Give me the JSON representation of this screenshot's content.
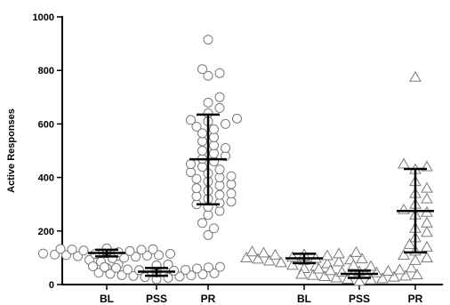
{
  "chart_data": {
    "type": "scatter",
    "ylabel": "Active Responses",
    "xlabel": "",
    "ylim": [
      0,
      1000
    ],
    "yticks": [
      0,
      200,
      400,
      600,
      800,
      1000
    ],
    "grid": false,
    "categories": [
      "BL",
      "PSS",
      "PR",
      "BL",
      "PSS",
      "PR"
    ],
    "groups": [
      {
        "category": "BL",
        "marker": "circle",
        "mean": 118,
        "error_low": 105,
        "error_high": 130,
        "points": [
          62,
          75,
          85,
          92,
          98,
          100,
          104,
          106,
          108,
          110,
          110,
          112,
          114,
          115,
          116,
          117,
          118,
          119,
          120,
          120,
          121,
          122,
          122,
          123,
          124,
          125,
          125,
          126,
          127,
          128,
          128,
          130,
          131,
          132,
          133,
          134,
          135
        ]
      },
      {
        "category": "PSS",
        "marker": "circle",
        "mean": 48,
        "error_low": 33,
        "error_high": 62,
        "points": [
          20,
          25,
          28,
          30,
          32,
          34,
          35,
          38,
          40,
          42,
          44,
          45,
          46,
          48,
          50,
          50,
          52,
          54,
          55,
          56,
          58,
          60,
          62,
          64,
          65,
          66,
          68,
          70,
          72,
          75
        ]
      },
      {
        "category": "PR",
        "marker": "circle",
        "mean": 468,
        "error_low": 300,
        "error_high": 635,
        "points": [
          185,
          210,
          230,
          260,
          275,
          290,
          300,
          305,
          310,
          320,
          330,
          335,
          340,
          350,
          360,
          370,
          375,
          385,
          395,
          400,
          405,
          415,
          420,
          430,
          440,
          450,
          460,
          470,
          480,
          490,
          500,
          510,
          520,
          535,
          550,
          565,
          580,
          590,
          600,
          610,
          615,
          620,
          640,
          660,
          680,
          700,
          780,
          790,
          805,
          915
        ]
      },
      {
        "category": "BL",
        "marker": "triangle",
        "mean": 98,
        "error_low": 80,
        "error_high": 115,
        "points": [
          60,
          68,
          72,
          78,
          82,
          85,
          88,
          90,
          92,
          95,
          96,
          98,
          100,
          102,
          104,
          105,
          108,
          110,
          112,
          115,
          118,
          120,
          122
        ]
      },
      {
        "category": "PSS",
        "marker": "triangle",
        "mean": 40,
        "error_low": 25,
        "error_high": 52,
        "points": [
          12,
          18,
          20,
          22,
          25,
          28,
          30,
          32,
          34,
          36,
          38,
          40,
          42,
          44,
          46,
          48,
          50,
          52,
          55,
          58,
          62,
          68,
          72
        ]
      },
      {
        "category": "PR",
        "marker": "triangle",
        "mean": 275,
        "error_low": 120,
        "error_high": 432,
        "points": [
          90,
          100,
          110,
          125,
          140,
          150,
          175,
          195,
          210,
          230,
          260,
          270,
          280,
          300,
          320,
          340,
          360,
          385,
          430,
          440,
          450,
          775
        ]
      }
    ]
  }
}
